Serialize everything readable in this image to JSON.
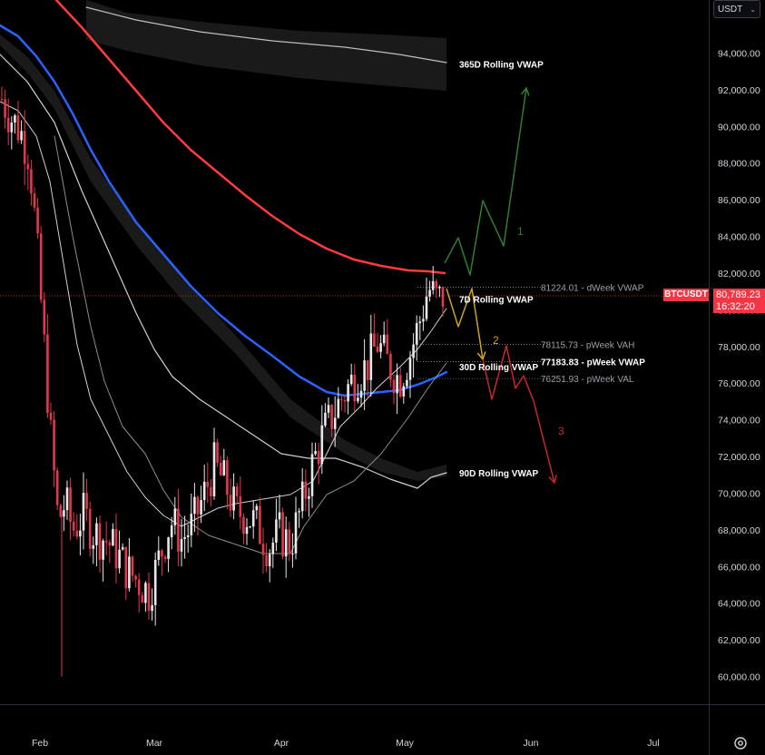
{
  "currency": {
    "label": "USDT"
  },
  "symbol": {
    "name": "BTCUSDT",
    "price": "80,789.23",
    "countdown": "16:32:20"
  },
  "icons": {
    "currency_chevron": "chevron-down-icon",
    "settings": "settings-gear-icon"
  },
  "colors": {
    "background": "#000000",
    "up": "#e8e8e8",
    "down": "#e0394d",
    "vwap7": "#ff3b3b",
    "vwap30": "#2962ff",
    "vwap90": "#cfcfcf",
    "vwap365": "#bdbdbd",
    "scenario1": "#2e7d32",
    "scenario2": "#c9a227",
    "scenario3": "#c62828"
  },
  "chart_data": {
    "type": "candlestick",
    "x_axis": {
      "tick_labels": [
        "Feb",
        "Mar",
        "Apr",
        "May",
        "Jun",
        "Jul"
      ]
    },
    "y_axis": {
      "range": [
        59000,
        97500
      ],
      "tick_labels": [
        "60,000.00",
        "62,000.00",
        "64,000.00",
        "66,000.00",
        "68,000.00",
        "70,000.00",
        "72,000.00",
        "74,000.00",
        "76,000.00",
        "78,000.00",
        "80,000.00",
        "82,000.00",
        "84,000.00",
        "86,000.00",
        "88,000.00",
        "90,000.00",
        "92,000.00",
        "94,000.00"
      ]
    },
    "current_price": 80789.23,
    "levels": [
      {
        "label": "81224.01 - dWeek VWAP",
        "value": 81224.01
      },
      {
        "label": "78115.73 - pWeek VAH",
        "value": 78115.73
      },
      {
        "label": "77183.83 - pWeek VWAP",
        "value": 77183.83
      },
      {
        "label": "76251.93 - pWeek VAL",
        "value": 76251.93
      }
    ],
    "series_labels": [
      {
        "name": "365D Rolling VWAP",
        "value": 93400
      },
      {
        "name": "7D Rolling VWAP",
        "value": 80600
      },
      {
        "name": "30D Rolling VWAP",
        "value": 76900
      },
      {
        "name": "90D Rolling VWAP",
        "value": 71100
      }
    ],
    "scenario_labels": [
      "1",
      "2",
      "3"
    ]
  }
}
